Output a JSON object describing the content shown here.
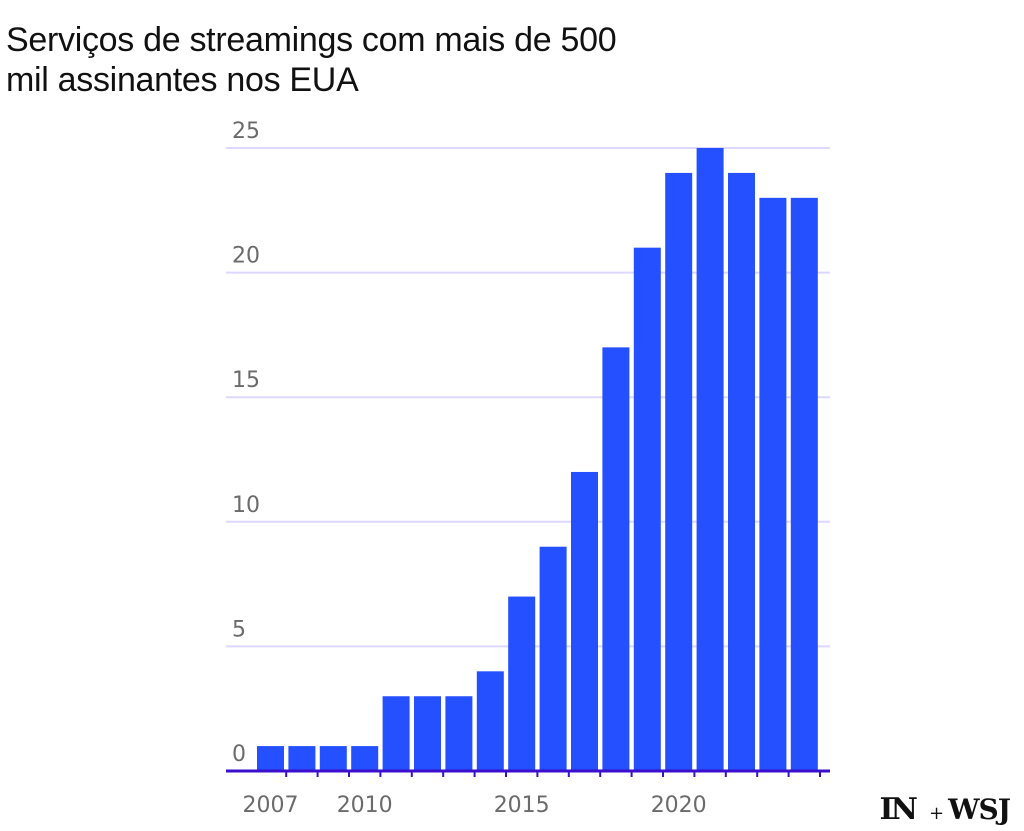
{
  "chart_data": {
    "type": "bar",
    "title": "Serviços de streamings com mais de 500 mil assinantes nos EUA",
    "x": [
      2007,
      2008,
      2009,
      2010,
      2011,
      2012,
      2013,
      2014,
      2015,
      2016,
      2017,
      2018,
      2019,
      2020,
      2021,
      2022,
      2023,
      2024
    ],
    "values": [
      1,
      1,
      1,
      1,
      3,
      3,
      3,
      4,
      7,
      9,
      12,
      17,
      21,
      24,
      25,
      24,
      23,
      23
    ],
    "xticks": [
      "2007",
      "2010",
      "2015",
      "2020"
    ],
    "yticks": [
      "0",
      "5",
      "10",
      "15",
      "20",
      "25"
    ],
    "ylim": [
      0,
      25
    ],
    "grid": true,
    "colors": {
      "bar": "#2450ff",
      "grid": "#ddd8ff",
      "axis": "#3a10cc"
    }
  },
  "branding": {
    "logo_left": "IN",
    "logo_plus": "+",
    "logo_right": "WSJ"
  }
}
